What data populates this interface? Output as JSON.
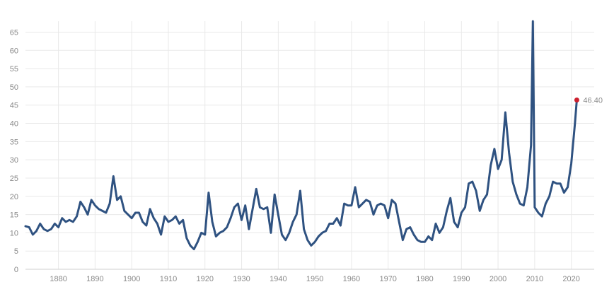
{
  "chart_data": {
    "type": "line",
    "title": "",
    "xlabel": "",
    "ylabel": "",
    "xlim": [
      1871,
      2022
    ],
    "ylim": [
      0,
      68
    ],
    "x_ticks": [
      1880,
      1890,
      1900,
      1910,
      1920,
      1930,
      1940,
      1950,
      1960,
      1970,
      1980,
      1990,
      2000,
      2010,
      2020
    ],
    "y_ticks": [
      0,
      5,
      10,
      15,
      20,
      25,
      30,
      35,
      40,
      45,
      50,
      55,
      60,
      65
    ],
    "grid": true,
    "legend": "none",
    "last_value_label": "46.40",
    "colors": {
      "line": "#2f5281",
      "marker": "#cc1f2e"
    },
    "series": [
      {
        "x": [
          1871,
          1872,
          1873,
          1874,
          1875,
          1876,
          1877,
          1878,
          1879,
          1880,
          1881,
          1882,
          1883,
          1884,
          1885,
          1886,
          1887,
          1888,
          1889,
          1890,
          1891,
          1892,
          1893,
          1894,
          1895,
          1896,
          1897,
          1898,
          1899,
          1900,
          1901,
          1902,
          1903,
          1904,
          1905,
          1906,
          1907,
          1908,
          1909,
          1910,
          1911,
          1912,
          1913,
          1914,
          1915,
          1916,
          1917,
          1918,
          1919,
          1920,
          1921,
          1922,
          1923,
          1924,
          1925,
          1926,
          1927,
          1928,
          1929,
          1930,
          1931,
          1932,
          1933,
          1934,
          1935,
          1936,
          1937,
          1938,
          1939,
          1940,
          1941,
          1942,
          1943,
          1944,
          1945,
          1946,
          1947,
          1948,
          1949,
          1950,
          1951,
          1952,
          1953,
          1954,
          1955,
          1956,
          1957,
          1958,
          1959,
          1960,
          1961,
          1962,
          1963,
          1964,
          1965,
          1966,
          1967,
          1968,
          1969,
          1970,
          1971,
          1972,
          1973,
          1974,
          1975,
          1976,
          1977,
          1978,
          1979,
          1980,
          1981,
          1982,
          1983,
          1984,
          1985,
          1986,
          1987,
          1988,
          1989,
          1990,
          1991,
          1992,
          1993,
          1994,
          1995,
          1996,
          1997,
          1998,
          1999,
          2000,
          2001,
          2002,
          2003,
          2004,
          2005,
          2006,
          2007,
          2008,
          2009,
          2009.5,
          2010,
          2011,
          2012,
          2013,
          2014,
          2015,
          2016,
          2017,
          2018,
          2019,
          2020,
          2021,
          2021.5
        ],
        "values": [
          11.8,
          11.5,
          9.5,
          10.5,
          12.5,
          11.0,
          10.5,
          11.0,
          12.5,
          11.5,
          14.0,
          13.0,
          13.5,
          13.0,
          14.5,
          18.5,
          17.0,
          15.0,
          19.0,
          17.5,
          16.5,
          16.0,
          15.5,
          18.0,
          25.5,
          19.0,
          20.0,
          16.0,
          15.0,
          14.0,
          15.5,
          15.5,
          13.0,
          12.0,
          16.5,
          14.0,
          12.5,
          9.5,
          14.5,
          13.0,
          13.5,
          14.5,
          12.5,
          13.5,
          8.5,
          6.5,
          5.5,
          7.5,
          10.0,
          9.5,
          21.0,
          13.0,
          9.0,
          10.0,
          10.5,
          11.5,
          14.0,
          17.0,
          18.0,
          13.5,
          17.5,
          11.0,
          16.5,
          22.0,
          17.0,
          16.5,
          17.0,
          10.0,
          20.5,
          15.0,
          9.5,
          8.0,
          10.0,
          13.0,
          15.0,
          21.5,
          11.0,
          8.0,
          6.5,
          7.5,
          9.0,
          10.0,
          10.5,
          12.5,
          12.5,
          14.0,
          12.0,
          18.0,
          17.5,
          17.5,
          22.5,
          17.0,
          18.0,
          19.0,
          18.5,
          15.0,
          17.5,
          18.0,
          17.5,
          14.0,
          19.0,
          18.0,
          13.0,
          8.0,
          11.0,
          11.5,
          9.5,
          8.0,
          7.5,
          7.5,
          9.0,
          8.0,
          12.5,
          10.0,
          11.5,
          16.0,
          19.5,
          13.0,
          11.5,
          15.5,
          17.0,
          23.5,
          24.0,
          21.5,
          16.0,
          19.0,
          20.5,
          28.5,
          33.0,
          27.5,
          30.0,
          43.0,
          32.0,
          24.0,
          20.5,
          18.0,
          17.5,
          22.5,
          34.0,
          68.0,
          17.0,
          15.5,
          14.5,
          18.0,
          20.0,
          24.0,
          23.5,
          23.5,
          21.0,
          22.5,
          29.0,
          40.0,
          46.4
        ]
      }
    ]
  }
}
